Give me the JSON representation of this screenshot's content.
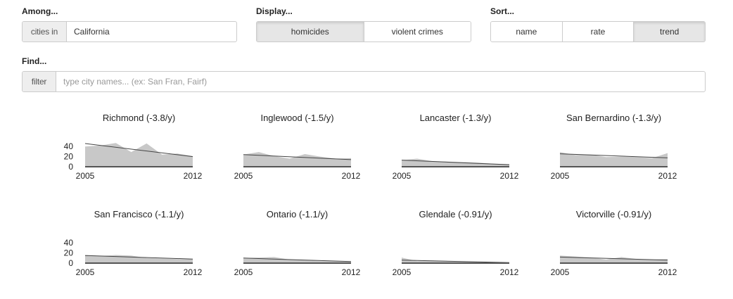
{
  "controls": {
    "among": {
      "label": "Among...",
      "addon": "cities in",
      "value": "California"
    },
    "display": {
      "label": "Display...",
      "options": [
        "homicides",
        "violent crimes"
      ],
      "active": "homicides"
    },
    "sort": {
      "label": "Sort...",
      "options": [
        "name",
        "rate",
        "trend"
      ],
      "active": "trend"
    },
    "find": {
      "label": "Find...",
      "addon": "filter",
      "placeholder": "type city names... (ex: San Fran, Fairf)"
    }
  },
  "colors": {
    "area_fill": "#c8c8c8",
    "trend_line": "#444444",
    "baseline": "#555555"
  },
  "chart_data": [
    {
      "type": "area",
      "title": "Richmond (-3.8/y)",
      "x": [
        2005,
        2006,
        2007,
        2008,
        2009,
        2010,
        2011,
        2012
      ],
      "values": [
        40,
        42,
        47,
        29,
        46,
        24,
        26,
        21
      ],
      "trend": [
        45.8,
        20.0
      ],
      "xlim": [
        2005,
        2012
      ],
      "ylim": [
        0,
        50
      ],
      "yticks": [
        0,
        20,
        40
      ],
      "xticks": [
        2005,
        2012
      ]
    },
    {
      "type": "area",
      "title": "Inglewood (-1.5/y)",
      "x": [
        2005,
        2006,
        2007,
        2008,
        2009,
        2010,
        2011,
        2012
      ],
      "values": [
        24,
        29,
        21,
        16,
        25,
        20,
        16,
        17
      ],
      "trend": [
        24.0,
        14.0
      ],
      "xlim": [
        2005,
        2012
      ],
      "ylim": [
        0,
        50
      ],
      "yticks": [
        0,
        20,
        40
      ],
      "xticks": [
        2005,
        2012
      ]
    },
    {
      "type": "area",
      "title": "Lancaster (-1.3/y)",
      "x": [
        2005,
        2006,
        2007,
        2008,
        2009,
        2010,
        2011,
        2012
      ],
      "values": [
        13,
        16,
        11,
        10,
        9,
        8,
        6,
        5
      ],
      "trend": [
        13.0,
        4.0
      ],
      "xlim": [
        2005,
        2012
      ],
      "ylim": [
        0,
        50
      ],
      "yticks": [
        0,
        20,
        40
      ],
      "xticks": [
        2005,
        2012
      ]
    },
    {
      "type": "area",
      "title": "San Bernardino (-1.3/y)",
      "x": [
        2005,
        2006,
        2007,
        2008,
        2009,
        2010,
        2011,
        2012
      ],
      "values": [
        29,
        23,
        24,
        19,
        20,
        19,
        17,
        27
      ],
      "trend": [
        25.5,
        17.5
      ],
      "xlim": [
        2005,
        2012
      ],
      "ylim": [
        0,
        50
      ],
      "yticks": [
        0,
        20,
        40
      ],
      "xticks": [
        2005,
        2012
      ]
    },
    {
      "type": "area",
      "title": "San Francisco (-1.1/y)",
      "x": [
        2005,
        2006,
        2007,
        2008,
        2009,
        2010,
        2011,
        2012
      ],
      "values": [
        16,
        14,
        16,
        15,
        10,
        9,
        8,
        8
      ],
      "trend": [
        15.0,
        8.0
      ],
      "xlim": [
        2005,
        2012
      ],
      "ylim": [
        0,
        50
      ],
      "yticks": [
        0,
        20,
        40
      ],
      "xticks": [
        2005,
        2012
      ]
    },
    {
      "type": "area",
      "title": "Ontario (-1.1/y)",
      "x": [
        2005,
        2006,
        2007,
        2008,
        2009,
        2010,
        2011,
        2012
      ],
      "values": [
        10,
        11,
        12,
        7,
        6,
        4,
        4,
        3
      ],
      "trend": [
        10.0,
        3.0
      ],
      "xlim": [
        2005,
        2012
      ],
      "ylim": [
        0,
        50
      ],
      "yticks": [
        0,
        20,
        40
      ],
      "xticks": [
        2005,
        2012
      ]
    },
    {
      "type": "area",
      "title": "Glendale (-0.91/y)",
      "x": [
        2005,
        2006,
        2007,
        2008,
        2009,
        2010,
        2011,
        2012
      ],
      "values": [
        11,
        4,
        5,
        4,
        3,
        2,
        2,
        1
      ],
      "trend": [
        6.0,
        1.0
      ],
      "xlim": [
        2005,
        2012
      ],
      "ylim": [
        0,
        50
      ],
      "yticks": [
        0,
        20,
        40
      ],
      "xticks": [
        2005,
        2012
      ]
    },
    {
      "type": "area",
      "title": "Victorville (-0.91/y)",
      "x": [
        2005,
        2006,
        2007,
        2008,
        2009,
        2010,
        2011,
        2012
      ],
      "values": [
        15,
        13,
        11,
        7,
        12,
        8,
        7,
        8
      ],
      "trend": [
        12.0,
        6.0
      ],
      "xlim": [
        2005,
        2012
      ],
      "ylim": [
        0,
        50
      ],
      "yticks": [
        0,
        20,
        40
      ],
      "xticks": [
        2005,
        2012
      ]
    }
  ]
}
